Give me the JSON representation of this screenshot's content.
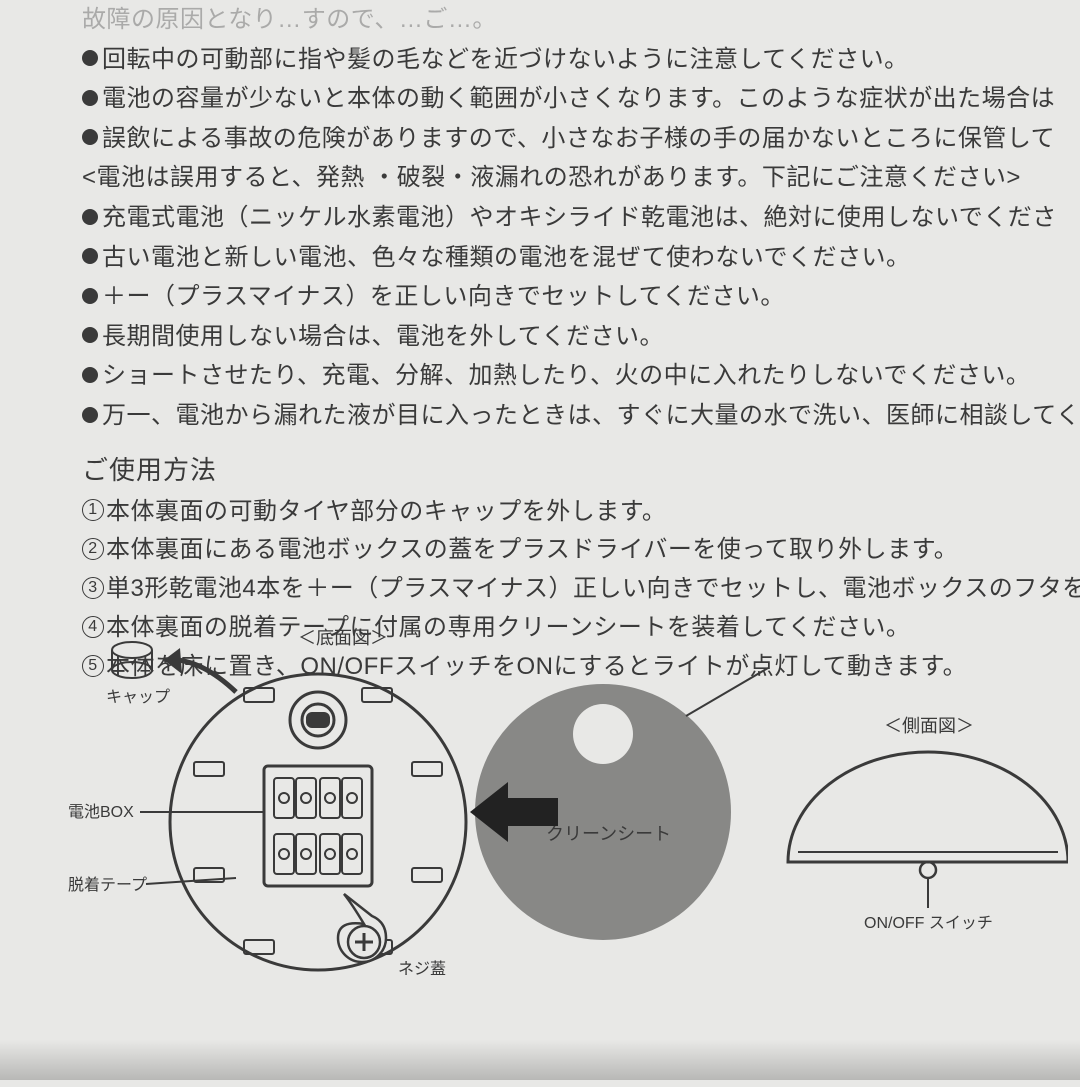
{
  "background_color": "#e8e8e6",
  "text_color": "#3a3a3a",
  "line_color": "#3a3a3a",
  "clean_sheet_fill": "#888886",
  "bullets": [
    "故障の原因となり…すので、…ご…。",
    "回転中の可動部に指や髪の毛などを近づけないように注意してください。",
    "電池の容量が少ないと本体の動く範囲が小さくなります。このような症状が出た場合は",
    "誤飲による事故の危険がありますので、小さなお子様の手の届かないところに保管して",
    "<電池は誤用すると、発熱 ・破裂・液漏れの恐れがあります。下記にご注意ください>",
    "充電式電池（ニッケル水素電池）やオキシライド乾電池は、絶対に使用しないでくださ",
    "古い電池と新しい電池、色々な種類の電池を混ぜて使わないでください。",
    "＋ー（プラスマイナス）を正しい向きでセットしてください。",
    "長期間使用しない場合は、電池を外してください。",
    "ショートさせたり、充電、分解、加熱したり、火の中に入れたりしないでください。",
    "万一、電池から漏れた液が目に入ったときは、すぐに大量の水で洗い、医師に相談してく"
  ],
  "bullet_has_dot": [
    false,
    true,
    true,
    true,
    false,
    true,
    true,
    true,
    true,
    true,
    true
  ],
  "section_title": "ご使用方法",
  "steps": [
    "本体裏面の可動タイヤ部分のキャップを外します。",
    "本体裏面にある電池ボックスの蓋をプラスドライバーを使って取り外します。",
    "単3形乾電池4本を＋ー（プラスマイナス）正しい向きでセットし、電池ボックスのフタを",
    "本体裏面の脱着テープに付属の専用クリーンシートを装着してください。",
    "本体を床に置き、ON/OFFスイッチをONにするとライトが点灯して動きます。"
  ],
  "diagram_labels": {
    "bottom_view": "＜底面図＞",
    "cap": "キャップ",
    "battery_box": "電池BOX",
    "tape": "脱着テープ",
    "screw_cover": "ネジ蓋",
    "clean_sheet": "クリーンシート",
    "side_view": "＜側面図＞",
    "switch": "ON/OFF スイッチ"
  },
  "diagram_style": {
    "stroke_width_main": 2.5,
    "bottom_circle_r": 148,
    "clean_circle_r": 128,
    "side_width": 280
  }
}
